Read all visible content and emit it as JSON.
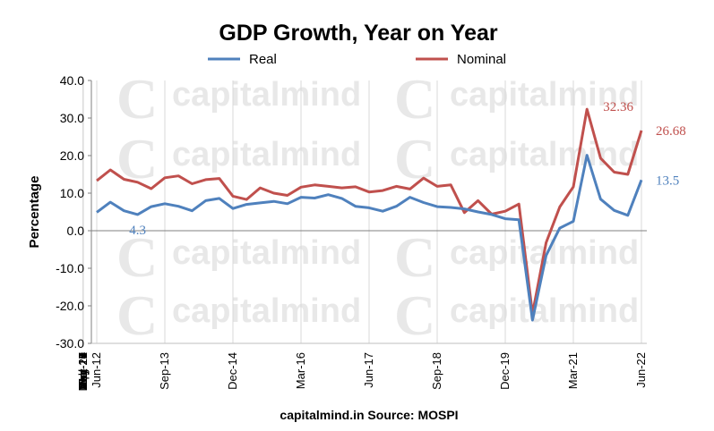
{
  "chart_data": {
    "type": "line",
    "title": "GDP Growth, Year on Year",
    "ylabel": "Percentage",
    "xlabel": "",
    "ylim": [
      -30,
      40
    ],
    "yticks": [
      "40.0",
      "30.0",
      "20.0",
      "10.0",
      "0.0",
      "-10.0",
      "-20.0",
      "-30.0"
    ],
    "grid": "vertical",
    "legend_position": "top",
    "x_tick_labels": [
      "Jun-12",
      "Nov-12",
      "Apr-13",
      "Sep-13",
      "Feb-14",
      "Jul-14",
      "Dec-14",
      "May-15",
      "Oct-15",
      "Mar-16",
      "Aug-16",
      "Jan-17",
      "Jun-17",
      "Nov-17",
      "Apr-18",
      "Sep-18",
      "Feb-19",
      "Jul-19",
      "Dec-19",
      "May-20",
      "Oct-20",
      "Mar-21",
      "Aug-21",
      "Jan-22",
      "Jun-22"
    ],
    "x": [
      "Jun-12",
      "Sep-12",
      "Dec-12",
      "Mar-13",
      "Jun-13",
      "Sep-13",
      "Dec-13",
      "Mar-14",
      "Jun-14",
      "Sep-14",
      "Dec-14",
      "Mar-15",
      "Jun-15",
      "Sep-15",
      "Dec-15",
      "Mar-16",
      "Jun-16",
      "Sep-16",
      "Dec-16",
      "Mar-17",
      "Jun-17",
      "Sep-17",
      "Dec-17",
      "Mar-18",
      "Jun-18",
      "Sep-18",
      "Dec-18",
      "Mar-19",
      "Jun-19",
      "Sep-19",
      "Dec-19",
      "Mar-20",
      "Jun-20",
      "Sep-20",
      "Dec-20",
      "Mar-21",
      "Jun-21",
      "Sep-21",
      "Dec-21",
      "Mar-22",
      "Jun-22"
    ],
    "series": [
      {
        "name": "Real",
        "color": "#4f81bd",
        "values": [
          4.9,
          7.6,
          5.3,
          4.3,
          6.4,
          7.2,
          6.5,
          5.3,
          8.0,
          8.6,
          5.9,
          7.0,
          7.4,
          7.8,
          7.2,
          8.9,
          8.7,
          9.6,
          8.6,
          6.5,
          6.1,
          5.2,
          6.5,
          8.9,
          7.5,
          6.4,
          6.2,
          5.8,
          5.0,
          4.3,
          3.2,
          2.9,
          -23.8,
          -6.6,
          0.7,
          2.5,
          20.1,
          8.4,
          5.4,
          4.1,
          13.5
        ]
      },
      {
        "name": "Nominal",
        "color": "#c0504d",
        "values": [
          13.3,
          16.2,
          13.7,
          12.9,
          11.2,
          14.1,
          14.6,
          12.5,
          13.6,
          13.9,
          9.2,
          8.3,
          11.4,
          10.0,
          9.4,
          11.6,
          12.2,
          11.8,
          11.4,
          11.7,
          10.3,
          10.7,
          11.8,
          11.1,
          14.0,
          11.8,
          12.2,
          4.8,
          8.0,
          4.4,
          5.2,
          7.1,
          -22.1,
          -3.2,
          6.3,
          11.7,
          32.36,
          19.3,
          15.6,
          15.0,
          26.68
        ]
      }
    ],
    "annotations": [
      {
        "text": "4.3",
        "series": "Real",
        "x": "Mar-13"
      },
      {
        "text": "32.36",
        "series": "Nominal",
        "x": "Jun-21"
      },
      {
        "text": "26.68",
        "series": "Nominal",
        "x": "Jun-22"
      },
      {
        "text": "13.5",
        "series": "Real",
        "x": "Jun-22"
      }
    ],
    "source": "capitalmind.in  Source: MOSPI"
  },
  "watermark": {
    "logo_letter": "C",
    "text": "capitalmind"
  }
}
